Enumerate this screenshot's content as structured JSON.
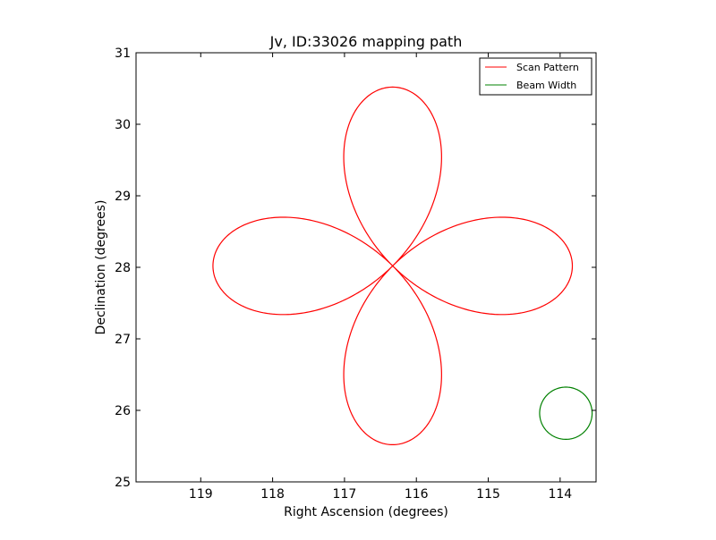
{
  "chart_data": {
    "type": "line",
    "title": "Jv, ID:33026 mapping path",
    "xlabel": "Right Ascension (degrees)",
    "ylabel": "Declination (degrees)",
    "xlim": [
      119.9,
      113.5
    ],
    "ylim": [
      25,
      31
    ],
    "x_inverted": true,
    "xticks": [
      119,
      118,
      117,
      116,
      115,
      114
    ],
    "xtick_labels": [
      "119",
      "118",
      "117",
      "116",
      "115",
      "114"
    ],
    "yticks": [
      25,
      26,
      27,
      28,
      29,
      30,
      31
    ],
    "ytick_labels": [
      "25",
      "26",
      "27",
      "28",
      "29",
      "30",
      "31"
    ],
    "grid": false,
    "legend_position": "top-right",
    "series": [
      {
        "name": "Scan Pattern",
        "color": "#ff0000",
        "shape": "four-petal rose",
        "center": [
          116.33,
          28.02
        ],
        "petal_length": 2.5
      },
      {
        "name": "Beam Width",
        "color": "#008000",
        "shape": "circle",
        "center": [
          113.92,
          25.96
        ],
        "radius": 0.365
      }
    ]
  }
}
